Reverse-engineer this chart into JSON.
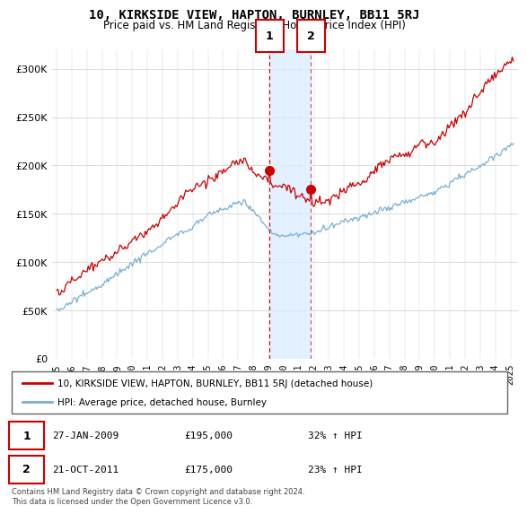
{
  "title": "10, KIRKSIDE VIEW, HAPTON, BURNLEY, BB11 5RJ",
  "subtitle": "Price paid vs. HM Land Registry's House Price Index (HPI)",
  "legend_line1": "10, KIRKSIDE VIEW, HAPTON, BURNLEY, BB11 5RJ (detached house)",
  "legend_line2": "HPI: Average price, detached house, Burnley",
  "red_color": "#cc0000",
  "blue_color": "#7aafd4",
  "sale1_label": "1",
  "sale1_date": "27-JAN-2009",
  "sale1_price": "£195,000",
  "sale1_hpi": "32% ↑ HPI",
  "sale2_label": "2",
  "sale2_date": "21-OCT-2011",
  "sale2_price": "£175,000",
  "sale2_hpi": "23% ↑ HPI",
  "footnote": "Contains HM Land Registry data © Crown copyright and database right 2024.\nThis data is licensed under the Open Government Licence v3.0.",
  "ylim": [
    0,
    320000
  ],
  "yticks": [
    0,
    50000,
    100000,
    150000,
    200000,
    250000,
    300000
  ],
  "sale1_x": 2009.07,
  "sale1_y": 195000,
  "sale2_x": 2011.8,
  "sale2_y": 175000,
  "shade_x1": 2009.07,
  "shade_x2": 2011.8,
  "xlim_left": 1994.7,
  "xlim_right": 2025.5
}
